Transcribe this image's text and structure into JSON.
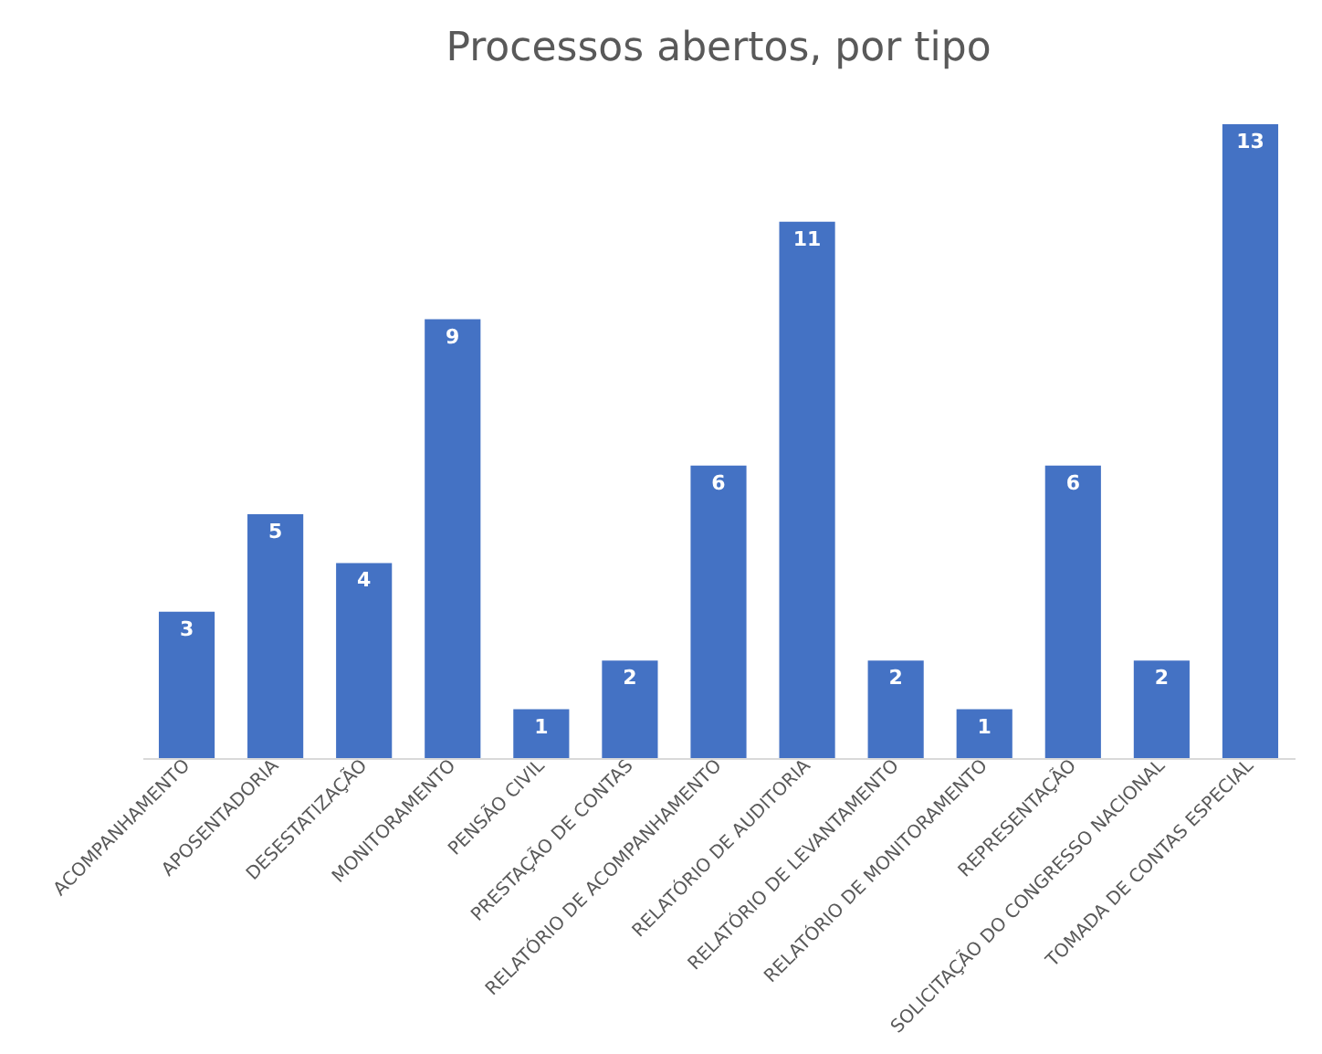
{
  "chart_data": {
    "type": "bar",
    "title": "Processos abertos, por tipo",
    "categories": [
      "ACOMPANHAMENTO",
      "APOSENTADORIA",
      "DESESTATIZAÇÃO",
      "MONITORAMENTO",
      "PENSÃO CIVIL",
      "PRESTAÇÃO DE CONTAS",
      "RELATÓRIO DE ACOMPANHAMENTO",
      "RELATÓRIO DE AUDITORIA",
      "RELATÓRIO DE LEVANTAMENTO",
      "RELATÓRIO DE MONITORAMENTO",
      "REPRESENTAÇÃO",
      "SOLICITAÇÃO DO CONGRESSO NACIONAL",
      "TOMADA DE CONTAS ESPECIAL"
    ],
    "values": [
      3,
      5,
      4,
      9,
      1,
      2,
      6,
      11,
      2,
      1,
      6,
      2,
      13
    ],
    "color": "#4472c4",
    "data_labels": true
  }
}
